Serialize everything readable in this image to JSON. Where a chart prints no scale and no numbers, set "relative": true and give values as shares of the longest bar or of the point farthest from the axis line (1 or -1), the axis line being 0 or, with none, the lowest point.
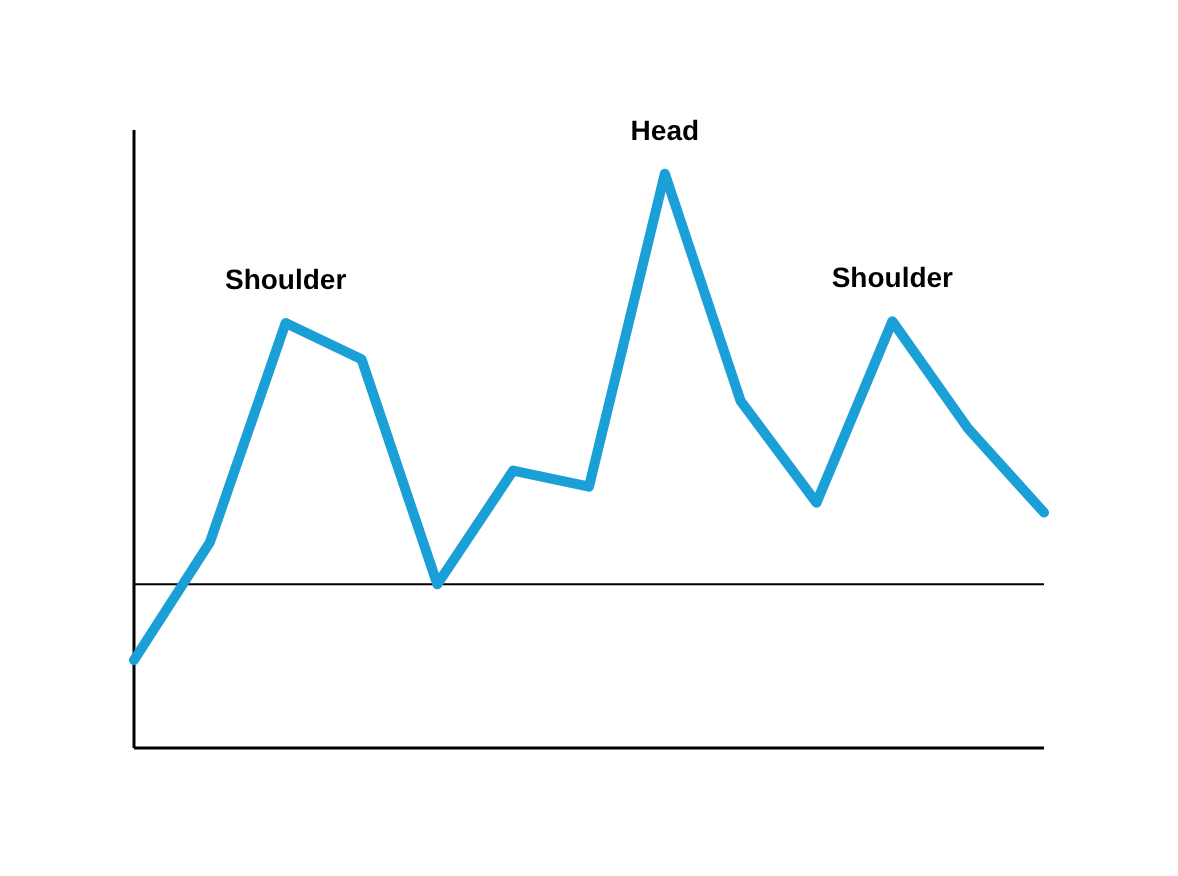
{
  "chart_data": {
    "type": "line",
    "relative": true,
    "categories": [
      null,
      null,
      null,
      null,
      null,
      null,
      null,
      null,
      null,
      null,
      null,
      null,
      null
    ],
    "values": [
      0.153,
      0.358,
      0.74,
      0.677,
      0.285,
      0.483,
      0.455,
      1,
      0.604,
      0.427,
      0.743,
      0.556,
      0.41
    ],
    "color": "#1a9fd6",
    "annotations": [
      "Shoulder",
      "Head",
      "Shoulder"
    ],
    "ref_lines": [
      {
        "axis": "y",
        "value": 0.285,
        "color": "#000000"
      }
    ]
  }
}
